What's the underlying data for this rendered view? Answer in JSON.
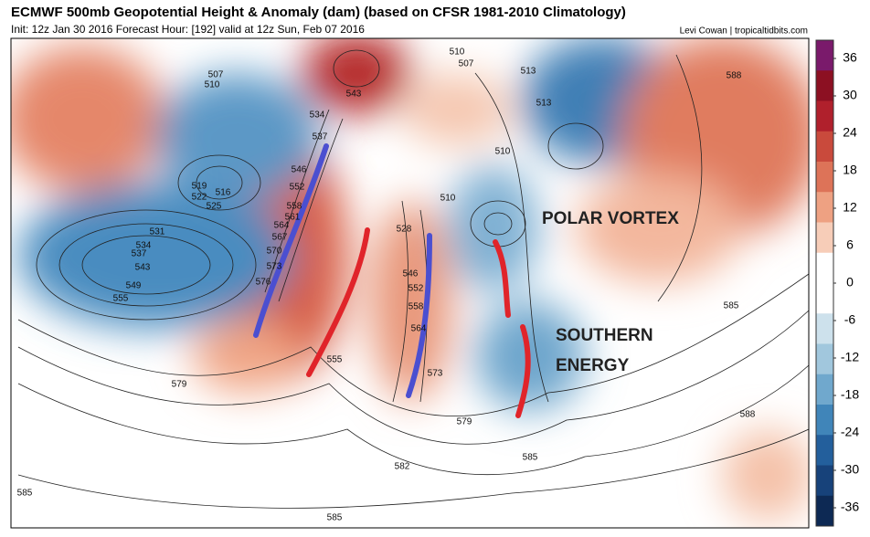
{
  "header": {
    "title": "ECMWF 500mb Geopotential Height & Anomaly (dam) (based on CFSR 1981-2010 Climatology)",
    "init": "Init: 12z Jan 30 2016   Forecast Hour: [192]   valid at 12z Sun, Feb 07 2016",
    "credit": "Levi Cowan | tropicaltidbits.com"
  },
  "colorbar": {
    "ticks": [
      36,
      30,
      24,
      18,
      12,
      6,
      0,
      -6,
      -12,
      -18,
      -24,
      -30,
      -36
    ],
    "colors": [
      "#7a1a6b",
      "#8c1022",
      "#b0202c",
      "#c94a3c",
      "#dd7358",
      "#eea182",
      "#f7cdb8",
      "#ffffff",
      "#ffffff",
      "#cde1ec",
      "#a1c7dd",
      "#70a8cd",
      "#4085b9",
      "#235f9c",
      "#17427a",
      "#0d2954"
    ]
  },
  "contour_labels": [
    "507",
    "510",
    "543",
    "537",
    "534",
    "546",
    "519",
    "516",
    "522",
    "525",
    "531",
    "534",
    "537",
    "543",
    "549",
    "555",
    "576",
    "573",
    "570",
    "567",
    "564",
    "561",
    "558",
    "552",
    "528",
    "546",
    "552",
    "558",
    "564",
    "573",
    "579",
    "579",
    "582",
    "585",
    "585",
    "588",
    "588",
    "585",
    "585",
    "510",
    "513",
    "513",
    "510",
    "510",
    "507",
    "555"
  ],
  "annotations": [
    "POLAR VORTEX",
    "SOUTHERN ENERGY"
  ]
}
